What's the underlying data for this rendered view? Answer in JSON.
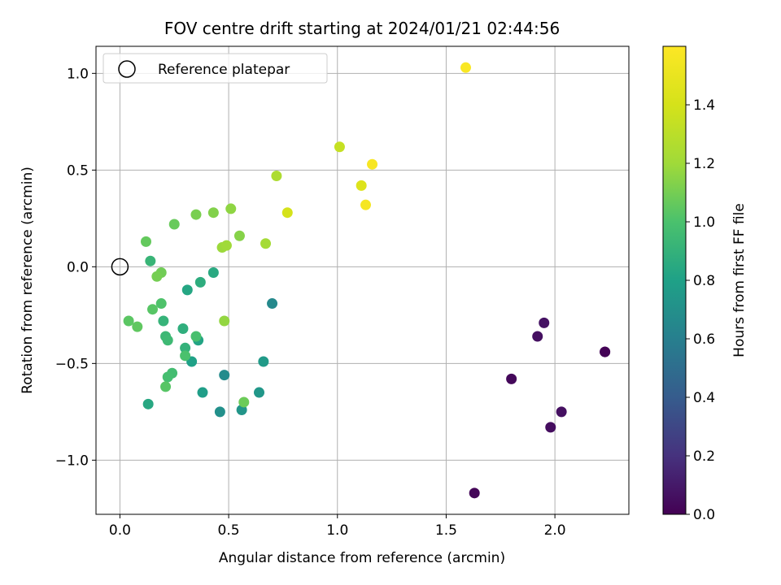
{
  "chart_data": {
    "type": "scatter",
    "title": "FOV centre drift starting at 2024/01/21 02:44:56",
    "xlabel": "Angular distance from reference (arcmin)",
    "ylabel": "Rotation from reference (arcmin)",
    "xlim": [
      -0.11,
      2.34
    ],
    "ylim": [
      -1.28,
      1.14
    ],
    "xticks": [
      0.0,
      0.5,
      1.0,
      1.5,
      2.0
    ],
    "xtick_labels": [
      "0.0",
      "0.5",
      "1.0",
      "1.5",
      "2.0"
    ],
    "yticks": [
      -1.0,
      -0.5,
      0.0,
      0.5,
      1.0
    ],
    "ytick_labels": [
      "−1.0",
      "−0.5",
      "0.0",
      "0.5",
      "1.0"
    ],
    "grid": true,
    "legend": {
      "placement": "top-left",
      "label": "Reference platepar"
    },
    "reference_point": {
      "x": 0.0,
      "y": 0.0
    },
    "colorbar": {
      "label": "Hours from first FF file",
      "colormap": "viridis",
      "range": [
        0.0,
        1.6
      ],
      "ticks": [
        0.0,
        0.2,
        0.4,
        0.6,
        0.8,
        1.0,
        1.2,
        1.4
      ],
      "tick_labels": [
        "0.0",
        "0.2",
        "0.4",
        "0.6",
        "0.8",
        "1.0",
        "1.2",
        "1.4"
      ]
    },
    "points": [
      {
        "x": 1.63,
        "y": -1.17,
        "c": 0.02
      },
      {
        "x": 1.8,
        "y": -0.58,
        "c": 0.03
      },
      {
        "x": 1.92,
        "y": -0.36,
        "c": 0.06
      },
      {
        "x": 1.95,
        "y": -0.29,
        "c": 0.07
      },
      {
        "x": 1.98,
        "y": -0.83,
        "c": 0.05
      },
      {
        "x": 2.03,
        "y": -0.75,
        "c": 0.06
      },
      {
        "x": 2.23,
        "y": -0.44,
        "c": 0.04
      },
      {
        "x": 2.23,
        "y": -0.44,
        "c": 0.01
      },
      {
        "x": 0.7,
        "y": -0.19,
        "c": 0.66
      },
      {
        "x": 0.48,
        "y": -0.56,
        "c": 0.67
      },
      {
        "x": 0.46,
        "y": -0.75,
        "c": 0.7
      },
      {
        "x": 0.56,
        "y": -0.74,
        "c": 0.73
      },
      {
        "x": 0.64,
        "y": -0.65,
        "c": 0.74
      },
      {
        "x": 0.66,
        "y": -0.49,
        "c": 0.76
      },
      {
        "x": 0.38,
        "y": -0.65,
        "c": 0.78
      },
      {
        "x": 0.33,
        "y": -0.49,
        "c": 0.8
      },
      {
        "x": 0.36,
        "y": -0.38,
        "c": 0.82
      },
      {
        "x": 0.31,
        "y": -0.12,
        "c": 0.83
      },
      {
        "x": 0.13,
        "y": -0.71,
        "c": 0.84
      },
      {
        "x": 0.43,
        "y": -0.03,
        "c": 0.85
      },
      {
        "x": 0.37,
        "y": -0.08,
        "c": 0.87
      },
      {
        "x": 0.29,
        "y": -0.32,
        "c": 0.88
      },
      {
        "x": 0.3,
        "y": -0.42,
        "c": 0.9
      },
      {
        "x": 0.2,
        "y": -0.28,
        "c": 0.91
      },
      {
        "x": 0.14,
        "y": 0.03,
        "c": 0.92
      },
      {
        "x": 0.21,
        "y": -0.36,
        "c": 0.94
      },
      {
        "x": 0.22,
        "y": -0.38,
        "c": 0.95
      },
      {
        "x": 0.24,
        "y": -0.55,
        "c": 0.97
      },
      {
        "x": 0.22,
        "y": -0.57,
        "c": 0.98
      },
      {
        "x": 0.35,
        "y": -0.36,
        "c": 0.99
      },
      {
        "x": 0.3,
        "y": -0.46,
        "c": 1.0
      },
      {
        "x": 0.19,
        "y": -0.19,
        "c": 1.01
      },
      {
        "x": 0.15,
        "y": -0.22,
        "c": 1.03
      },
      {
        "x": 0.21,
        "y": -0.62,
        "c": 1.03
      },
      {
        "x": 0.04,
        "y": -0.28,
        "c": 1.04
      },
      {
        "x": 0.08,
        "y": -0.31,
        "c": 1.05
      },
      {
        "x": 0.12,
        "y": 0.13,
        "c": 1.06
      },
      {
        "x": 0.25,
        "y": 0.22,
        "c": 1.07
      },
      {
        "x": 0.57,
        "y": -0.7,
        "c": 1.08
      },
      {
        "x": 0.19,
        "y": -0.03,
        "c": 1.09
      },
      {
        "x": 0.17,
        "y": -0.05,
        "c": 1.1
      },
      {
        "x": 0.35,
        "y": 0.27,
        "c": 1.11
      },
      {
        "x": 0.43,
        "y": 0.28,
        "c": 1.13
      },
      {
        "x": 0.55,
        "y": 0.16,
        "c": 1.14
      },
      {
        "x": 0.51,
        "y": 0.3,
        "c": 1.16
      },
      {
        "x": 0.48,
        "y": -0.28,
        "c": 1.17
      },
      {
        "x": 0.47,
        "y": 0.1,
        "c": 1.19
      },
      {
        "x": 0.49,
        "y": 0.11,
        "c": 1.2
      },
      {
        "x": 0.67,
        "y": 0.12,
        "c": 1.22
      },
      {
        "x": 0.72,
        "y": 0.47,
        "c": 1.25
      },
      {
        "x": 1.01,
        "y": 0.62,
        "c": 1.34
      },
      {
        "x": 0.77,
        "y": 0.28,
        "c": 1.4
      },
      {
        "x": 1.11,
        "y": 0.42,
        "c": 1.44
      },
      {
        "x": 1.13,
        "y": 0.32,
        "c": 1.56
      },
      {
        "x": 1.16,
        "y": 0.53,
        "c": 1.57
      },
      {
        "x": 1.59,
        "y": 1.03,
        "c": 1.58
      }
    ]
  }
}
